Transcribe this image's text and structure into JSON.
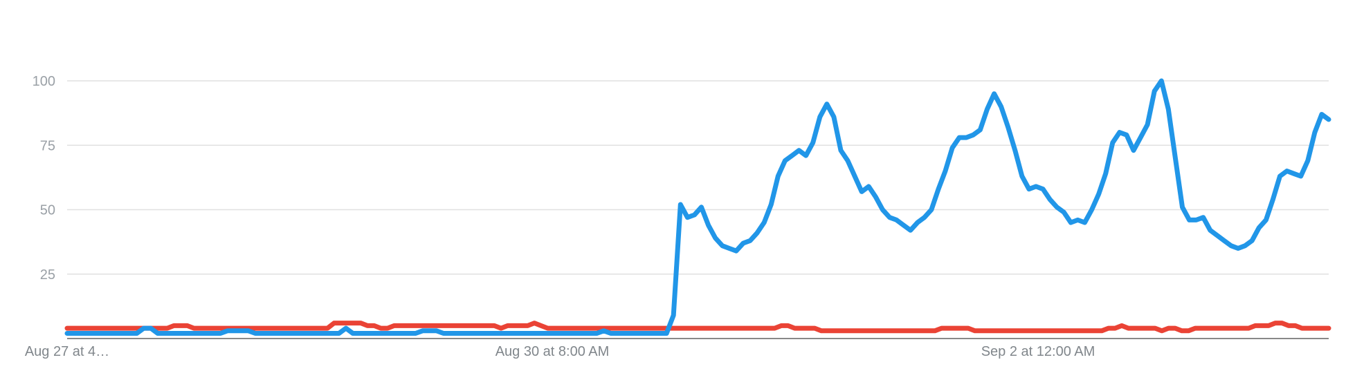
{
  "chart_data": {
    "type": "line",
    "title": "",
    "xlabel": "",
    "ylabel": "",
    "ylim": [
      0,
      100
    ],
    "yticks": [
      "25",
      "50",
      "75",
      "100"
    ],
    "xtick_labels": [
      "Aug 27 at 4…",
      "Aug 30 at 8:00 AM",
      "Sep 2 at 12:00 AM"
    ],
    "grid": true,
    "legend": "none",
    "points_per_series": 184,
    "series": [
      {
        "color": "#2196e8",
        "values": [
          2,
          2,
          2,
          2,
          2,
          2,
          2,
          2,
          2,
          2,
          2,
          4,
          4,
          2,
          2,
          2,
          2,
          2,
          2,
          2,
          2,
          2,
          2,
          3,
          3,
          3,
          3,
          2,
          2,
          2,
          2,
          2,
          2,
          2,
          2,
          2,
          2,
          2,
          2,
          2,
          4,
          2,
          2,
          2,
          2,
          2,
          2,
          2,
          2,
          2,
          2,
          3,
          3,
          3,
          2,
          2,
          2,
          2,
          2,
          2,
          2,
          2,
          2,
          2,
          2,
          2,
          2,
          2,
          2,
          2,
          2,
          2,
          2,
          2,
          2,
          2,
          2,
          3,
          2,
          2,
          2,
          2,
          2,
          2,
          2,
          2,
          2,
          9,
          52,
          47,
          48,
          51,
          44,
          39,
          36,
          35,
          34,
          37,
          38,
          41,
          45,
          52,
          63,
          69,
          71,
          73,
          71,
          76,
          86,
          91,
          86,
          73,
          69,
          63,
          57,
          59,
          55,
          50,
          47,
          46,
          44,
          42,
          45,
          47,
          50,
          58,
          65,
          74,
          78,
          78,
          79,
          81,
          89,
          95,
          90,
          82,
          73,
          63,
          58,
          59,
          58,
          54,
          51,
          49,
          45,
          46,
          45,
          50,
          56,
          64,
          76,
          80,
          79,
          73,
          78,
          83,
          96,
          100,
          89,
          70,
          51,
          46,
          46,
          47,
          42,
          40,
          38,
          36,
          35,
          36,
          38,
          43,
          46,
          54,
          63,
          65,
          64,
          63,
          69,
          80,
          87,
          85
        ]
      },
      {
        "color": "#ea4335",
        "values": [
          4,
          4,
          4,
          4,
          4,
          4,
          4,
          4,
          4,
          4,
          4,
          4,
          4,
          4,
          4,
          4,
          5,
          5,
          5,
          4,
          4,
          4,
          4,
          4,
          4,
          4,
          4,
          4,
          4,
          4,
          4,
          4,
          4,
          4,
          4,
          4,
          4,
          4,
          4,
          4,
          6,
          6,
          6,
          6,
          6,
          5,
          5,
          4,
          4,
          5,
          5,
          5,
          5,
          5,
          5,
          5,
          5,
          5,
          5,
          5,
          5,
          5,
          5,
          5,
          5,
          4,
          5,
          5,
          5,
          5,
          6,
          5,
          4,
          4,
          4,
          4,
          4,
          4,
          4,
          4,
          4,
          4,
          4,
          4,
          4,
          4,
          4,
          4,
          4,
          4,
          4,
          4,
          4,
          4,
          4,
          4,
          4,
          4,
          4,
          4,
          4,
          4,
          4,
          4,
          4,
          4,
          4,
          5,
          5,
          4,
          4,
          4,
          4,
          3,
          3,
          3,
          3,
          3,
          3,
          3,
          3,
          3,
          3,
          3,
          3,
          3,
          3,
          3,
          3,
          3,
          3,
          4,
          4,
          4,
          4,
          4,
          3,
          3,
          3,
          3,
          3,
          3,
          3,
          3,
          3,
          3,
          3,
          3,
          3,
          3,
          3,
          3,
          3,
          3,
          3,
          3,
          4,
          4,
          5,
          4,
          4,
          4,
          4,
          4,
          3,
          4,
          4,
          3,
          3,
          4,
          4,
          4,
          4,
          4,
          4,
          4,
          4,
          4,
          5,
          5,
          5,
          6,
          6,
          5,
          5,
          4,
          4,
          4,
          4,
          4
        ]
      }
    ]
  }
}
